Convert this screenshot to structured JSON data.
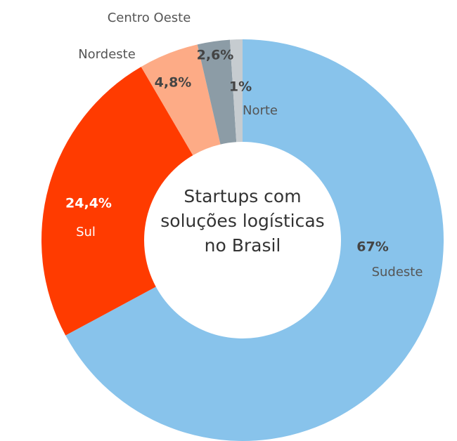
{
  "chart_data": {
    "type": "donut",
    "title": "Startups com soluções logísticas no Brasil",
    "categories": [
      "Sudeste",
      "Sul",
      "Nordeste",
      "Centro Oeste",
      "Norte"
    ],
    "values": [
      67,
      24.4,
      4.8,
      2.6,
      1
    ],
    "value_labels": [
      "67%",
      "24,4%",
      "4,8%",
      "2,6%",
      "1%"
    ],
    "colors": [
      "#88c3eb",
      "#ff3b00",
      "#fdab86",
      "#8c9ca6",
      "#c6ccd0"
    ]
  }
}
